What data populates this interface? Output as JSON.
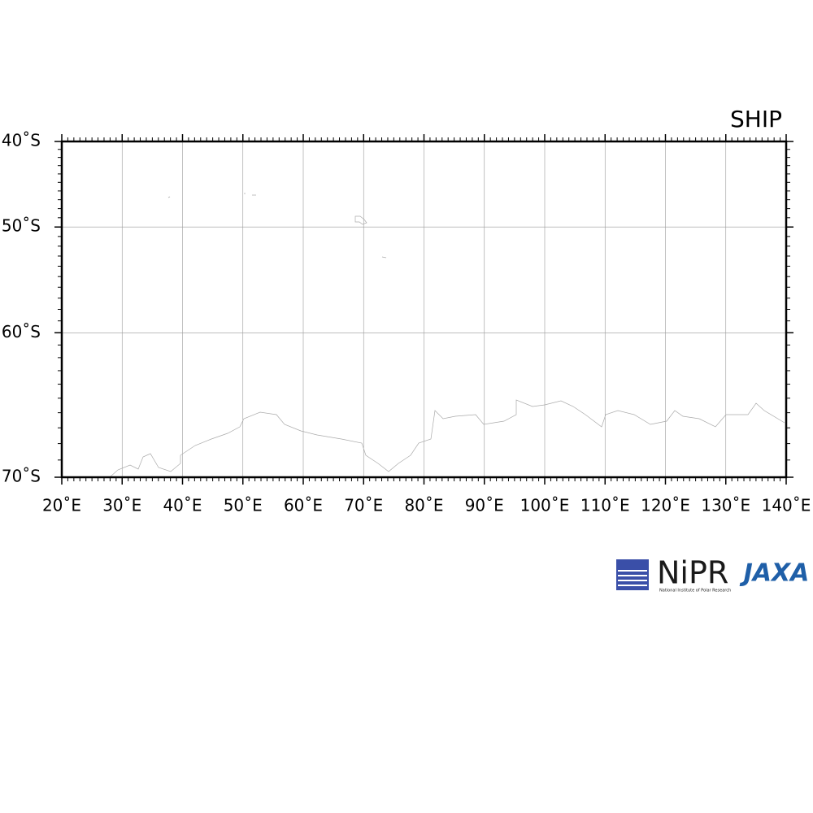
{
  "chart_data": {
    "type": "map",
    "projection": "mercator",
    "title": "SHIP",
    "xlim": [
      20,
      140
    ],
    "ylim": [
      -70,
      -40
    ],
    "xticks": [
      {
        "value": 20,
        "label": "20˚E"
      },
      {
        "value": 30,
        "label": "30˚E"
      },
      {
        "value": 40,
        "label": "40˚E"
      },
      {
        "value": 50,
        "label": "50˚E"
      },
      {
        "value": 60,
        "label": "60˚E"
      },
      {
        "value": 70,
        "label": "70˚E"
      },
      {
        "value": 80,
        "label": "80˚E"
      },
      {
        "value": 90,
        "label": "90˚E"
      },
      {
        "value": 100,
        "label": "100˚E"
      },
      {
        "value": 110,
        "label": "110˚E"
      },
      {
        "value": 120,
        "label": "120˚E"
      },
      {
        "value": 130,
        "label": "130˚E"
      },
      {
        "value": 140,
        "label": "140˚E"
      }
    ],
    "yticks": [
      {
        "value": -40,
        "label": "40˚S"
      },
      {
        "value": -50,
        "label": "50˚S"
      },
      {
        "value": -60,
        "label": "60˚S"
      },
      {
        "value": -70,
        "label": "70˚S"
      }
    ],
    "minor_tick_step": 1,
    "grid": true
  },
  "logos": {
    "nipr": "NiPR",
    "nipr_subtitle": "National Institute of Polar Research",
    "jaxa": "JAXA"
  }
}
